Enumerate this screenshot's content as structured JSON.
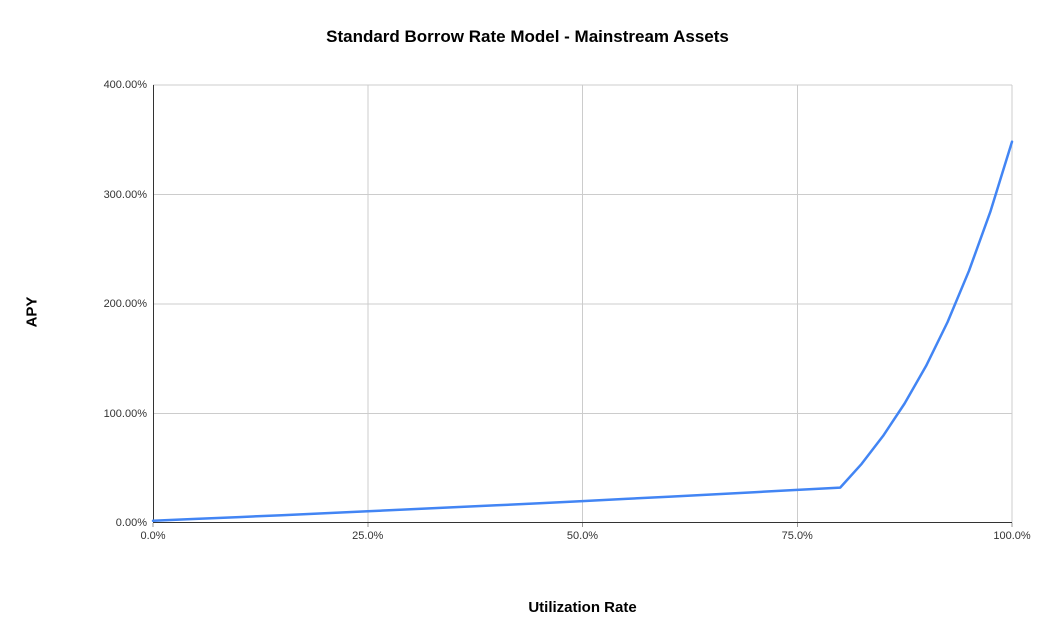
{
  "chart_data": {
    "type": "line",
    "title": "Standard Borrow Rate Model - Mainstream Assets",
    "xlabel": "Utilization Rate",
    "ylabel": "APY",
    "xlim": [
      0,
      100
    ],
    "ylim": [
      0,
      400
    ],
    "grid": true,
    "legend": "none",
    "x_ticks": [
      {
        "value": 0,
        "label": "0.0%"
      },
      {
        "value": 25,
        "label": "25.0%"
      },
      {
        "value": 50,
        "label": "50.0%"
      },
      {
        "value": 75,
        "label": "75.0%"
      },
      {
        "value": 100,
        "label": "100.0%"
      }
    ],
    "y_ticks": [
      {
        "value": 0,
        "label": "0.00%"
      },
      {
        "value": 100,
        "label": "100.00%"
      },
      {
        "value": 200,
        "label": "200.00%"
      },
      {
        "value": 300,
        "label": "300.00%"
      },
      {
        "value": 400,
        "label": "400.00%"
      }
    ],
    "series": [
      {
        "name": "APY",
        "color": "#4285f4",
        "points": [
          [
            0,
            2.0
          ],
          [
            5,
            3.7
          ],
          [
            10,
            5.4
          ],
          [
            15,
            7.1
          ],
          [
            20,
            8.9
          ],
          [
            25,
            10.7
          ],
          [
            30,
            12.5
          ],
          [
            35,
            14.3
          ],
          [
            40,
            16.2
          ],
          [
            45,
            18.1
          ],
          [
            50,
            20.0
          ],
          [
            55,
            22.0
          ],
          [
            60,
            24.0
          ],
          [
            65,
            26.0
          ],
          [
            70,
            28.1
          ],
          [
            75,
            30.2
          ],
          [
            80,
            32.3
          ],
          [
            82.5,
            54.1
          ],
          [
            85,
            79.5
          ],
          [
            87.5,
            109.1
          ],
          [
            90,
            143.5
          ],
          [
            92.5,
            183.6
          ],
          [
            95,
            230.3
          ],
          [
            97.5,
            284.7
          ],
          [
            100,
            348.2
          ]
        ]
      }
    ]
  },
  "colors": {
    "line": "#4285f4",
    "gridline": "#cccccc",
    "axis": "#333333",
    "tick_mark": "#999999",
    "tick_label": "#333333",
    "text": "#000000"
  }
}
